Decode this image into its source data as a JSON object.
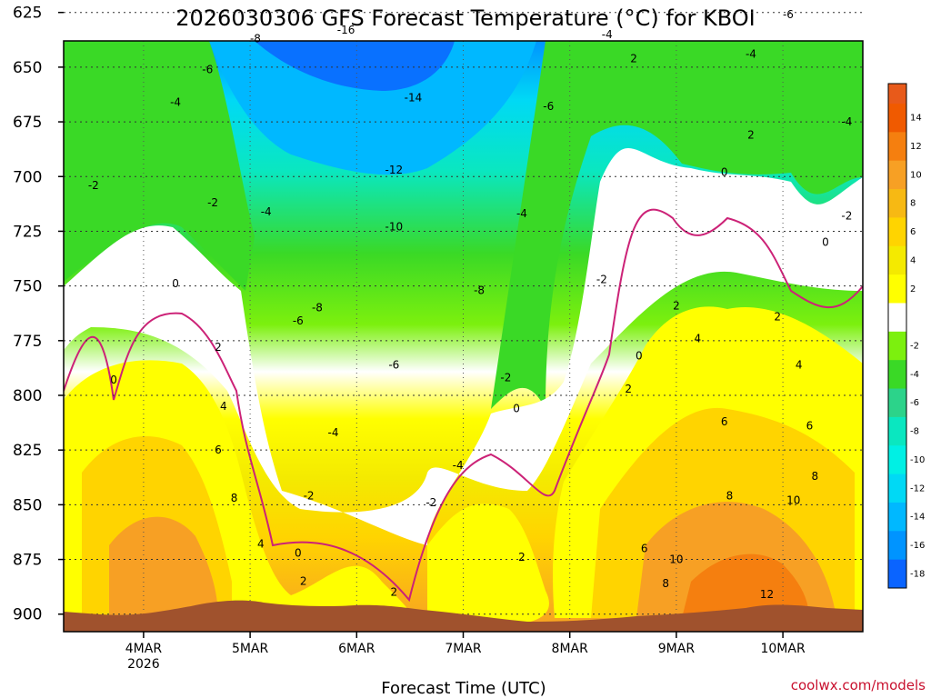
{
  "chart_data": {
    "type": "heatmap",
    "title": "2026030306 GFS Forecast Temperature (°C) for KBOI",
    "xlabel": "Forecast Time (UTC)",
    "ylabel": "",
    "y_axis_note": "Pressure (hPa), inverted",
    "y_ticks": [
      625,
      650,
      675,
      700,
      725,
      750,
      775,
      800,
      825,
      850,
      875,
      900
    ],
    "ylim": [
      638,
      908
    ],
    "x_ticks": [
      {
        "label": "4MAR",
        "sublabel": "2026",
        "day": 4
      },
      {
        "label": "5MAR",
        "sublabel": "",
        "day": 5
      },
      {
        "label": "6MAR",
        "sublabel": "",
        "day": 6
      },
      {
        "label": "7MAR",
        "sublabel": "",
        "day": 7
      },
      {
        "label": "8MAR",
        "sublabel": "",
        "day": 8
      },
      {
        "label": "9MAR",
        "sublabel": "",
        "day": 9
      },
      {
        "label": "10MAR",
        "sublabel": "",
        "day": 10
      }
    ],
    "xlim": [
      3.25,
      10.75
    ],
    "colorbar": [
      {
        "label": "14",
        "color": "#f05a00"
      },
      {
        "label": "12",
        "color": "#f57f0f"
      },
      {
        "label": "10",
        "color": "#f7a024"
      },
      {
        "label": "8",
        "color": "#f7b913"
      },
      {
        "label": "6",
        "color": "#ffd400"
      },
      {
        "label": "4",
        "color": "#f4ea00"
      },
      {
        "label": "2",
        "color": "#ffff00"
      },
      {
        "label": "",
        "color": "#ffffff"
      },
      {
        "label": "-2",
        "color": "#7cf00e"
      },
      {
        "label": "-4",
        "color": "#3ad926"
      },
      {
        "label": "-6",
        "color": "#2cd38a"
      },
      {
        "label": "-8",
        "color": "#0ae7c0"
      },
      {
        "label": "-10",
        "color": "#00f0e4"
      },
      {
        "label": "-12",
        "color": "#00d9f5"
      },
      {
        "label": "-14",
        "color": "#00b8ff"
      },
      {
        "label": "-16",
        "color": "#0094ff"
      },
      {
        "label": "-18",
        "color": "#0a64ff"
      }
    ],
    "colorbar_top_color": "#e85a1a",
    "contour_labels": [
      {
        "text": "-16",
        "day": 5.9,
        "p": 633
      },
      {
        "text": "-14",
        "day": 6.53,
        "p": 664
      },
      {
        "text": "-12",
        "day": 6.35,
        "p": 697
      },
      {
        "text": "-10",
        "day": 6.35,
        "p": 723
      },
      {
        "text": "-8",
        "day": 5.05,
        "p": 637
      },
      {
        "text": "-8",
        "day": 5.63,
        "p": 760
      },
      {
        "text": "-8",
        "day": 7.15,
        "p": 752
      },
      {
        "text": "-6",
        "day": 4.6,
        "p": 651
      },
      {
        "text": "-6",
        "day": 5.45,
        "p": 766
      },
      {
        "text": "-6",
        "day": 6.35,
        "p": 786
      },
      {
        "text": "-6",
        "day": 7.8,
        "p": 668
      },
      {
        "text": "-6",
        "day": 10.05,
        "p": 626
      },
      {
        "text": "-4",
        "day": 4.3,
        "p": 666
      },
      {
        "text": "-4",
        "day": 5.15,
        "p": 716
      },
      {
        "text": "-4",
        "day": 5.78,
        "p": 817
      },
      {
        "text": "-4",
        "day": 6.95,
        "p": 832
      },
      {
        "text": "-4",
        "day": 7.55,
        "p": 717
      },
      {
        "text": "-4",
        "day": 8.35,
        "p": 635
      },
      {
        "text": "-4",
        "day": 9.7,
        "p": 644
      },
      {
        "text": "-4",
        "day": 10.6,
        "p": 675
      },
      {
        "text": "-2",
        "day": 3.53,
        "p": 704
      },
      {
        "text": "-2",
        "day": 4.65,
        "p": 712
      },
      {
        "text": "-2",
        "day": 5.55,
        "p": 846
      },
      {
        "text": "-2",
        "day": 6.7,
        "p": 849
      },
      {
        "text": "-2",
        "day": 7.4,
        "p": 792
      },
      {
        "text": "-2",
        "day": 8.3,
        "p": 747
      },
      {
        "text": "-2",
        "day": 10.6,
        "p": 718
      },
      {
        "text": "2",
        "day": 4.7,
        "p": 778
      },
      {
        "text": "2",
        "day": 5.5,
        "p": 885
      },
      {
        "text": "2",
        "day": 6.35,
        "p": 890
      },
      {
        "text": "2",
        "day": 7.55,
        "p": 874
      },
      {
        "text": "2",
        "day": 8.55,
        "p": 797
      },
      {
        "text": "2",
        "day": 9.0,
        "p": 759
      },
      {
        "text": "2",
        "day": 9.95,
        "p": 764
      },
      {
        "text": "2",
        "day": 9.7,
        "p": 681
      },
      {
        "text": "2",
        "day": 8.6,
        "p": 646
      },
      {
        "text": "4",
        "day": 4.75,
        "p": 805
      },
      {
        "text": "4",
        "day": 5.1,
        "p": 868
      },
      {
        "text": "4",
        "day": 9.2,
        "p": 774
      },
      {
        "text": "4",
        "day": 10.15,
        "p": 786
      },
      {
        "text": "6",
        "day": 4.7,
        "p": 825
      },
      {
        "text": "6",
        "day": 8.7,
        "p": 870
      },
      {
        "text": "6",
        "day": 9.45,
        "p": 812
      },
      {
        "text": "6",
        "day": 10.25,
        "p": 814
      },
      {
        "text": "8",
        "day": 4.85,
        "p": 847
      },
      {
        "text": "8",
        "day": 8.9,
        "p": 886
      },
      {
        "text": "8",
        "day": 9.5,
        "p": 846
      },
      {
        "text": "8",
        "day": 10.3,
        "p": 837
      },
      {
        "text": "10",
        "day": 9.0,
        "p": 875
      },
      {
        "text": "10",
        "day": 10.1,
        "p": 848
      },
      {
        "text": "12",
        "day": 9.85,
        "p": 891
      },
      {
        "text": "0",
        "day": 3.72,
        "p": 793
      },
      {
        "text": "0",
        "day": 4.3,
        "p": 749
      },
      {
        "text": "0",
        "day": 5.45,
        "p": 872
      },
      {
        "text": "0",
        "day": 7.5,
        "p": 806
      },
      {
        "text": "0",
        "day": 8.65,
        "p": 782
      },
      {
        "text": "0",
        "day": 9.45,
        "p": 698
      },
      {
        "text": "0",
        "day": 10.4,
        "p": 730
      }
    ]
  },
  "credit": "coolwx.com/models",
  "colors": {
    "ground": "#a0522d",
    "zero_line": "#cc2277",
    "frame": "#000000"
  }
}
